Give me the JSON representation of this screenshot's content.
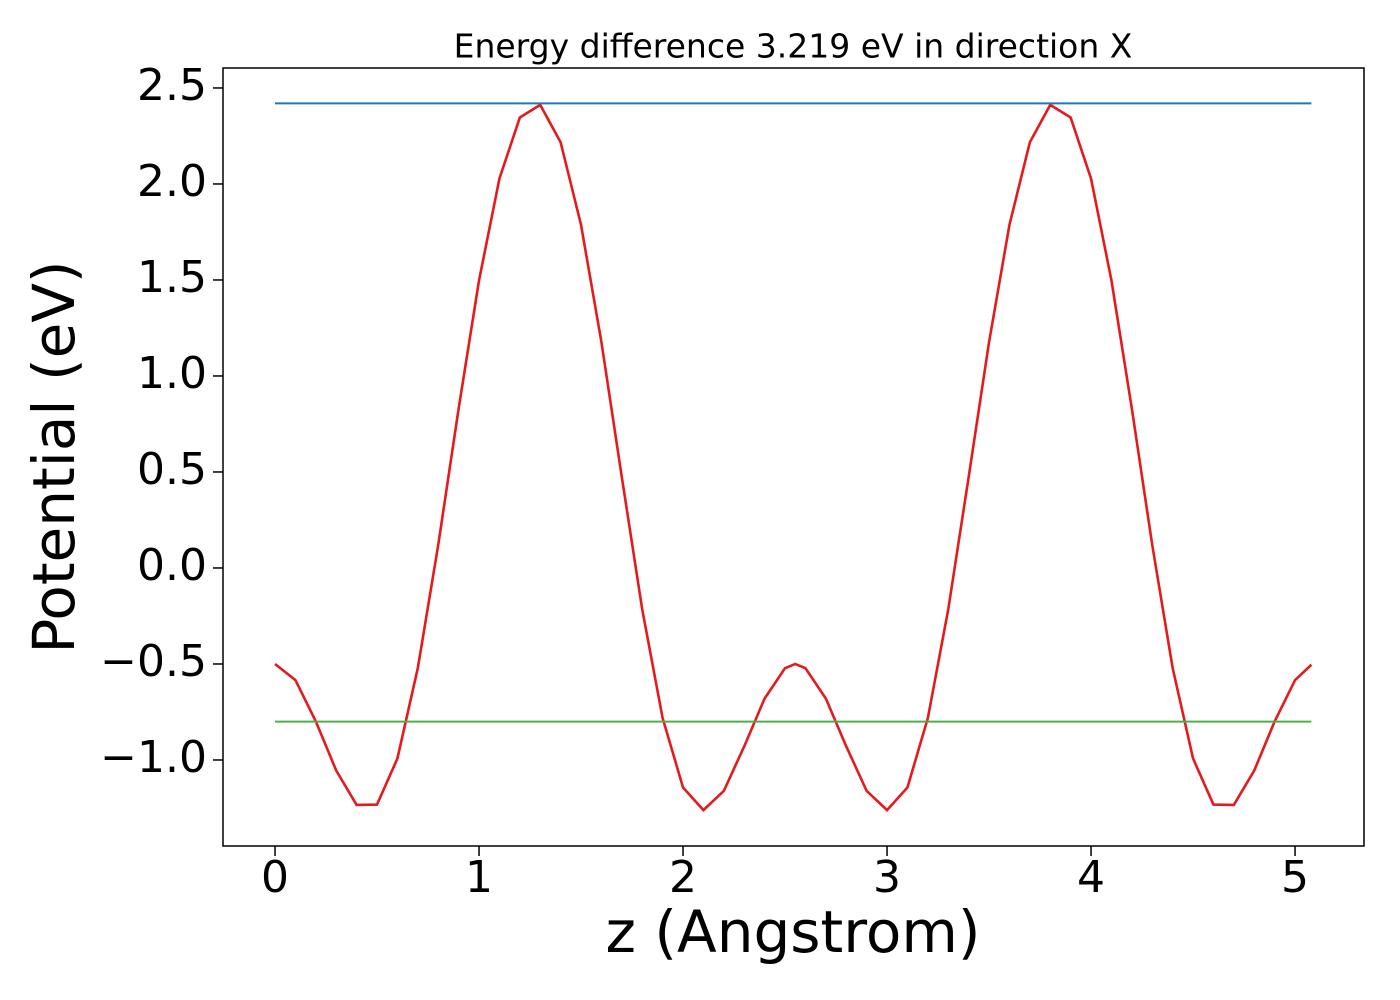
{
  "chart_data": {
    "type": "line",
    "title": "Energy difference 3.219 eV in direction X",
    "xlabel": "z (Angstrom)",
    "ylabel": "Potential (eV)",
    "xlim": [
      -0.255,
      5.338
    ],
    "ylim": [
      -1.448,
      2.604
    ],
    "xticks": [
      0,
      1,
      2,
      3,
      4,
      5
    ],
    "yticks": [
      {
        "value": -1.0,
        "label": "−1.0"
      },
      {
        "value": -0.5,
        "label": "−0.5"
      },
      {
        "value": 0.0,
        "label": "0.0"
      },
      0.5,
      {
        "value": 1.0,
        "label": "1.0"
      },
      1.5,
      {
        "value": 2.0,
        "label": "2.0"
      },
      2.5
    ],
    "grid": false,
    "series": [
      {
        "color": "#e41a1c",
        "x": [
          0,
          0.1,
          0.2,
          0.3,
          0.4,
          0.5,
          0.6,
          0.7,
          0.8,
          0.9,
          1.0,
          1.1,
          1.2,
          1.3,
          1.4,
          1.5,
          1.6,
          1.7,
          1.8,
          1.9,
          2.0,
          2.1,
          2.2,
          2.3,
          2.4,
          2.5,
          2.55,
          2.6,
          2.7,
          2.8,
          2.9,
          3.0,
          3.1,
          3.2,
          3.3,
          3.4,
          3.5,
          3.6,
          3.7,
          3.8,
          3.9,
          4.0,
          4.1,
          4.2,
          4.3,
          4.4,
          4.5,
          4.6,
          4.7,
          4.8,
          4.9,
          5.0,
          5.08
        ],
        "values": [
          -0.5,
          -0.584,
          -0.799,
          -1.055,
          -1.234,
          -1.232,
          -0.992,
          -0.521,
          0.12,
          0.83,
          1.498,
          2.028,
          2.346,
          2.412,
          2.217,
          1.787,
          1.176,
          0.473,
          -0.216,
          -0.782,
          -1.143,
          -1.261,
          -1.161,
          -0.929,
          -0.68,
          -0.522,
          -0.5,
          -0.522,
          -0.68,
          -0.929,
          -1.161,
          -1.261,
          -1.143,
          -0.782,
          -0.216,
          0.473,
          1.176,
          1.787,
          2.217,
          2.412,
          2.346,
          2.028,
          1.498,
          0.83,
          0.12,
          -0.521,
          -0.992,
          -1.232,
          -1.234,
          -1.055,
          -0.799,
          -0.584,
          -0.504
        ]
      },
      {
        "color": "#1f77b4",
        "x": [
          0,
          5.08
        ],
        "values": [
          2.42,
          2.42
        ]
      },
      {
        "color": "#4daf4a",
        "x": [
          0,
          5.08
        ],
        "values": [
          -0.8,
          -0.8
        ]
      }
    ]
  }
}
